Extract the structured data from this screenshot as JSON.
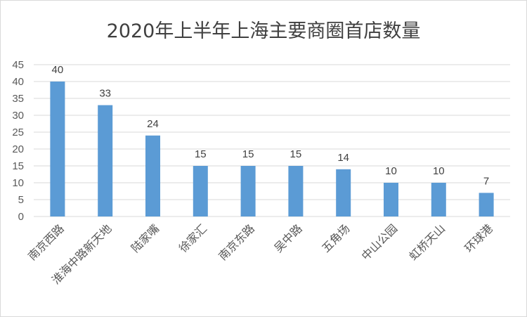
{
  "chart_data": {
    "type": "bar",
    "title": "2020年上半年上海主要商圈首店数量",
    "categories": [
      "南京西路",
      "淮海中路新天地",
      "陆家嘴",
      "徐家汇",
      "南京东路",
      "吴中路",
      "五角场",
      "中山公园",
      "虹桥天山",
      "环球港"
    ],
    "values": [
      40,
      33,
      24,
      15,
      15,
      15,
      14,
      10,
      10,
      7
    ],
    "y_ticks": [
      "0",
      "5",
      "10",
      "15",
      "20",
      "25",
      "30",
      "35",
      "40",
      "45"
    ],
    "ylim": [
      0,
      45
    ],
    "grid": true,
    "data_labels": true,
    "legend": "none",
    "bar_color": "#5b9bd5"
  }
}
